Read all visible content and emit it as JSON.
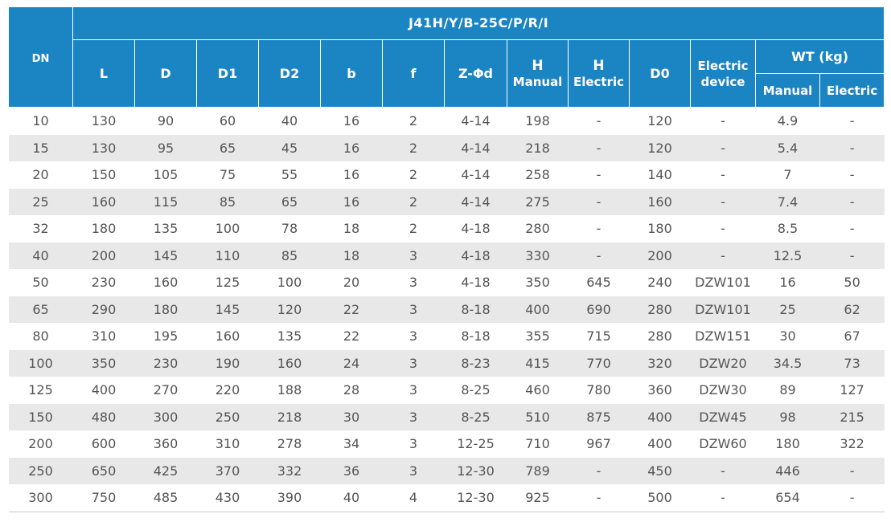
{
  "colors": {
    "header_bg": "#1b85c4",
    "header_text": "#ffffff",
    "stripe": "#e8e8e8",
    "cell_text": "#555555"
  },
  "header": {
    "dn": "DN",
    "model": "J41H/Y/B-25C/P/R/I",
    "l": "L",
    "d": "D",
    "d1": "D1",
    "d2": "D2",
    "b": "b",
    "f": "f",
    "zphid": "Z-Φd",
    "h_manual_top": "H",
    "h_manual_bottom": "Manual",
    "h_electric_top": "H",
    "h_electric_bottom": "Electric",
    "d0": "D0",
    "electric_device_top": "Electric",
    "electric_device_bottom": "device",
    "wt": "WT (kg)",
    "wt_manual": "Manual",
    "wt_electric": "Electric"
  },
  "rows": [
    [
      "10",
      "130",
      "90",
      "60",
      "40",
      "16",
      "2",
      "4-14",
      "198",
      "-",
      "120",
      "-",
      "4.9",
      "-"
    ],
    [
      "15",
      "130",
      "95",
      "65",
      "45",
      "16",
      "2",
      "4-14",
      "218",
      "-",
      "120",
      "-",
      "5.4",
      "-"
    ],
    [
      "20",
      "150",
      "105",
      "75",
      "55",
      "16",
      "2",
      "4-14",
      "258",
      "-",
      "140",
      "-",
      "7",
      "-"
    ],
    [
      "25",
      "160",
      "115",
      "85",
      "65",
      "16",
      "2",
      "4-14",
      "275",
      "-",
      "160",
      "-",
      "7.4",
      "-"
    ],
    [
      "32",
      "180",
      "135",
      "100",
      "78",
      "18",
      "2",
      "4-18",
      "280",
      "-",
      "180",
      "-",
      "8.5",
      "-"
    ],
    [
      "40",
      "200",
      "145",
      "110",
      "85",
      "18",
      "3",
      "4-18",
      "330",
      "-",
      "200",
      "-",
      "12.5",
      "-"
    ],
    [
      "50",
      "230",
      "160",
      "125",
      "100",
      "20",
      "3",
      "4-18",
      "350",
      "645",
      "240",
      "DZW101",
      "16",
      "50"
    ],
    [
      "65",
      "290",
      "180",
      "145",
      "120",
      "22",
      "3",
      "8-18",
      "400",
      "690",
      "280",
      "DZW101",
      "25",
      "62"
    ],
    [
      "80",
      "310",
      "195",
      "160",
      "135",
      "22",
      "3",
      "8-18",
      "355",
      "715",
      "280",
      "DZW151",
      "30",
      "67"
    ],
    [
      "100",
      "350",
      "230",
      "190",
      "160",
      "24",
      "3",
      "8-23",
      "415",
      "770",
      "320",
      "DZW20",
      "34.5",
      "73"
    ],
    [
      "125",
      "400",
      "270",
      "220",
      "188",
      "28",
      "3",
      "8-25",
      "460",
      "780",
      "360",
      "DZW30",
      "89",
      "127"
    ],
    [
      "150",
      "480",
      "300",
      "250",
      "218",
      "30",
      "3",
      "8-25",
      "510",
      "875",
      "400",
      "DZW45",
      "98",
      "215"
    ],
    [
      "200",
      "600",
      "360",
      "310",
      "278",
      "34",
      "3",
      "12-25",
      "710",
      "967",
      "400",
      "DZW60",
      "180",
      "322"
    ],
    [
      "250",
      "650",
      "425",
      "370",
      "332",
      "36",
      "3",
      "12-30",
      "789",
      "-",
      "450",
      "-",
      "446",
      "-"
    ],
    [
      "300",
      "750",
      "485",
      "430",
      "390",
      "40",
      "4",
      "12-30",
      "925",
      "-",
      "500",
      "-",
      "654",
      "-"
    ]
  ]
}
